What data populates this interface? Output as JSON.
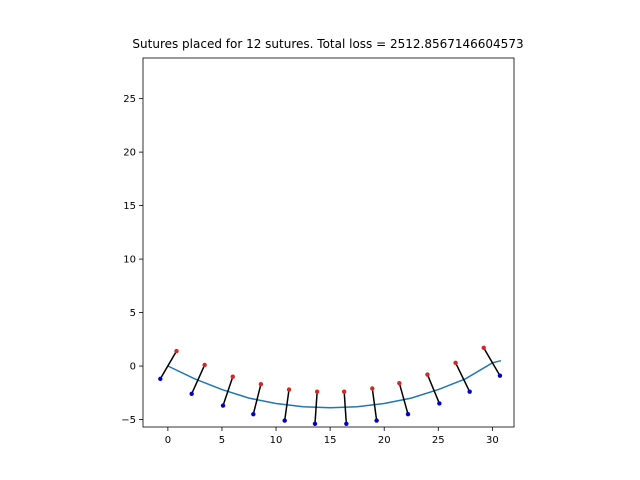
{
  "chart_data": {
    "type": "line",
    "title": "Sutures placed for 12 sutures. Total loss = 2512.8567146604573",
    "xlabel": "",
    "ylabel": "",
    "xlim": [
      -2.3,
      32.0
    ],
    "ylim": [
      -5.7,
      28.8
    ],
    "x_ticks": [
      0,
      5,
      10,
      15,
      20,
      25,
      30
    ],
    "y_ticks": [
      -5,
      0,
      5,
      10,
      15,
      20,
      25
    ],
    "grid": false,
    "legend": "none",
    "wound_curve": {
      "color": "#1f77b4",
      "x": [
        0,
        2.5,
        5,
        7.5,
        10,
        12.5,
        15,
        17.5,
        20,
        22.5,
        25,
        27.5,
        30,
        30.8
      ],
      "y": [
        0.0,
        -1.2,
        -2.2,
        -3.0,
        -3.5,
        -3.8,
        -3.9,
        -3.8,
        -3.5,
        -3.0,
        -2.2,
        -1.2,
        0.3,
        0.5
      ]
    },
    "sutures": {
      "line_color": "#000000",
      "insertion_color": "#d62728",
      "extraction_color": "#0000cc",
      "insertion_points": [
        [
          0.8,
          1.4
        ],
        [
          3.4,
          0.1
        ],
        [
          6.0,
          -1.0
        ],
        [
          8.6,
          -1.7
        ],
        [
          11.2,
          -2.2
        ],
        [
          13.8,
          -2.4
        ],
        [
          16.3,
          -2.4
        ],
        [
          18.9,
          -2.1
        ],
        [
          21.4,
          -1.6
        ],
        [
          24.0,
          -0.8
        ],
        [
          26.6,
          0.3
        ],
        [
          29.2,
          1.7
        ]
      ],
      "extraction_points": [
        [
          -0.7,
          -1.2
        ],
        [
          2.2,
          -2.6
        ],
        [
          5.1,
          -3.7
        ],
        [
          7.9,
          -4.5
        ],
        [
          10.8,
          -5.1
        ],
        [
          13.6,
          -5.4
        ],
        [
          16.5,
          -5.4
        ],
        [
          19.3,
          -5.1
        ],
        [
          22.2,
          -4.5
        ],
        [
          25.1,
          -3.5
        ],
        [
          27.9,
          -2.4
        ],
        [
          30.7,
          -0.9
        ]
      ]
    }
  }
}
